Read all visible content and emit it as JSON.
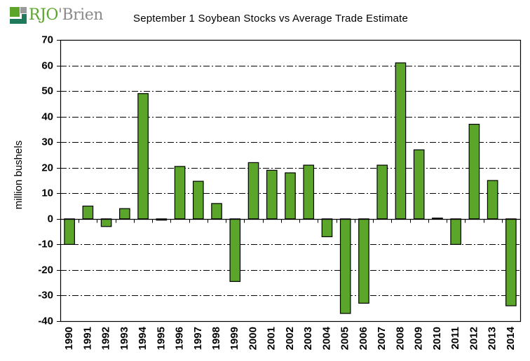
{
  "logo": {
    "name": "RJO'Brien",
    "part_rjo": "RJO",
    "part_brien": "'Brien",
    "colors": {
      "green": "#5aa52a",
      "dark_green": "#1f7a5c",
      "gray": "#8a8a8a"
    }
  },
  "chart_data": {
    "type": "bar",
    "title": "September 1 Soybean Stocks vs Average Trade Estimate",
    "xlabel": "",
    "ylabel": "million bushels",
    "ylim": [
      -40,
      70
    ],
    "yticks": [
      70,
      60,
      50,
      40,
      30,
      20,
      10,
      0,
      -10,
      -20,
      -30,
      -40
    ],
    "grid": "horizontal dash-dot",
    "legend": "none",
    "bar_color": "#5aa52a",
    "categories": [
      "1990",
      "1991",
      "1992",
      "1993",
      "1994",
      "1995",
      "1996",
      "1997",
      "1998",
      "1999",
      "2000",
      "2001",
      "2002",
      "2003",
      "2004",
      "2005",
      "2006",
      "2007",
      "2008",
      "2009",
      "2010",
      "2011",
      "2012",
      "2013",
      "2014"
    ],
    "values": [
      -10,
      5,
      -3,
      4,
      49,
      -0.5,
      20.5,
      14.7,
      6,
      -24.5,
      22,
      19,
      18,
      21,
      -7,
      -37,
      -33,
      21,
      61,
      27,
      0.3,
      -10,
      37,
      15,
      -34
    ]
  }
}
